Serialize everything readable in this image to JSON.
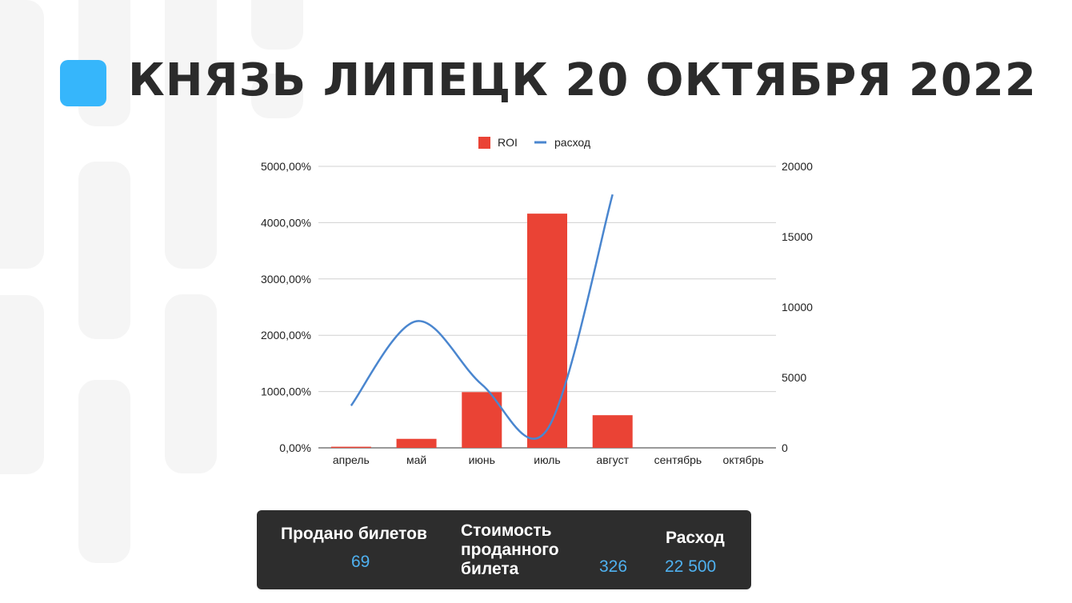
{
  "header": {
    "title": "КНЯЗЬ ЛИПЕЦК 20 ОКТЯБРЯ 2022"
  },
  "colors": {
    "accent": "#36b6fb",
    "roi_bar": "#ea4335",
    "expense_line": "#4a86cf",
    "stats_bg": "#2d2d2d",
    "stats_value": "#4fb1f0"
  },
  "chart_data": {
    "type": "bar",
    "categories": [
      "апрель",
      "май",
      "июнь",
      "июль",
      "август",
      "сентябрь",
      "октябрь"
    ],
    "legend": {
      "position": "top"
    },
    "grid": true,
    "series": [
      {
        "name": "ROI",
        "type": "bar",
        "axis": "left",
        "values": [
          20,
          160,
          990,
          4160,
          580,
          0,
          0
        ]
      },
      {
        "name": "расход",
        "type": "line",
        "axis": "right",
        "smooth": true,
        "values": [
          3000,
          9000,
          4500,
          1300,
          18000,
          null,
          null
        ]
      }
    ],
    "y_left": {
      "min": 0,
      "max": 5000,
      "ticks": [
        "0,00%",
        "1000,00%",
        "2000,00%",
        "3000,00%",
        "4000,00%",
        "5000,00%"
      ]
    },
    "y_right": {
      "min": 0,
      "max": 20000,
      "ticks": [
        "0",
        "5000",
        "10000",
        "15000",
        "20000"
      ]
    }
  },
  "stats": {
    "sold_label": "Продано билетов",
    "sold_value": "69",
    "cost_label_1": "Стоимость",
    "cost_label_2": "проданного",
    "cost_label_3": "билета",
    "cost_value": "326",
    "expense_label": "Расход",
    "expense_value": "22 500"
  }
}
